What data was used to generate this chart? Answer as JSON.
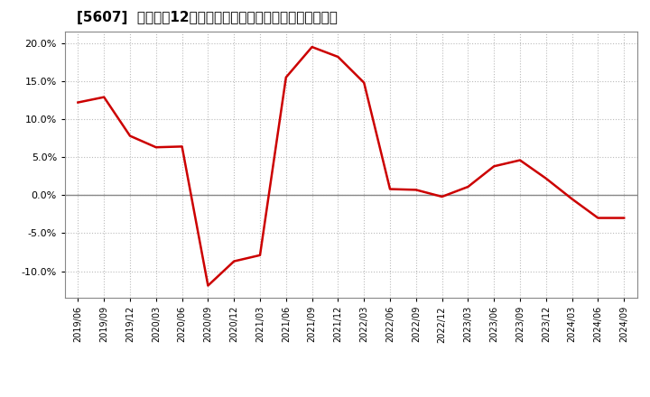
{
  "title": "[5607]  売上高の12か月移動合計の対前年同期増減率の推移",
  "line_color": "#cc0000",
  "background_color": "#ffffff",
  "grid_color": "#bbbbbb",
  "zero_line_color": "#888888",
  "ylim": [
    -0.135,
    0.215
  ],
  "yticks": [
    -0.1,
    -0.05,
    0.0,
    0.05,
    0.1,
    0.15,
    0.2
  ],
  "dates": [
    "2019/06",
    "2019/09",
    "2019/12",
    "2020/03",
    "2020/06",
    "2020/09",
    "2020/12",
    "2021/03",
    "2021/06",
    "2021/09",
    "2021/12",
    "2022/03",
    "2022/06",
    "2022/09",
    "2022/12",
    "2023/03",
    "2023/06",
    "2023/09",
    "2023/12",
    "2024/03",
    "2024/06",
    "2024/09"
  ],
  "values": [
    0.122,
    0.129,
    0.078,
    0.063,
    0.064,
    -0.119,
    -0.087,
    -0.079,
    0.155,
    0.195,
    0.182,
    0.148,
    0.008,
    0.007,
    -0.002,
    0.011,
    0.038,
    0.046,
    0.022,
    -0.005,
    -0.03,
    -0.03
  ],
  "title_fontsize": 11,
  "tick_fontsize": 8,
  "xtick_fontsize": 7
}
